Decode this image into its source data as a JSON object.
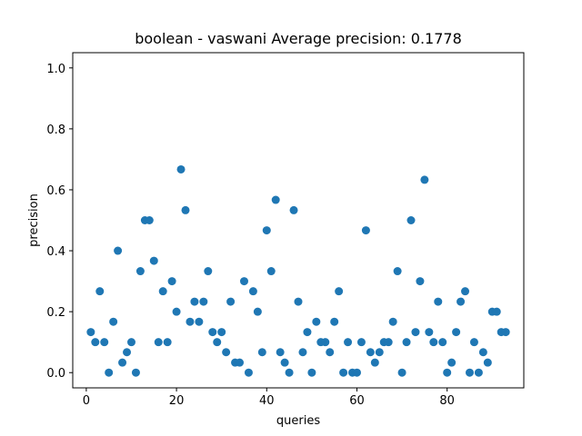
{
  "chart_data": {
    "type": "scatter",
    "title": "boolean - vaswani  Average precision: 0.1778",
    "xlabel": "queries",
    "ylabel": "precision",
    "xlim": [
      -3,
      97
    ],
    "ylim": [
      -0.05,
      1.05
    ],
    "xticks": [
      0,
      20,
      40,
      60,
      80
    ],
    "yticks": [
      0.0,
      0.2,
      0.4,
      0.6,
      0.8,
      1.0
    ],
    "ytick_labels": [
      "0.0",
      "0.2",
      "0.4",
      "0.6",
      "0.8",
      "1.0"
    ],
    "grid": false,
    "marker_color": "#1f77b4",
    "x": [
      1,
      2,
      3,
      4,
      5,
      6,
      7,
      8,
      9,
      10,
      11,
      12,
      13,
      14,
      15,
      16,
      17,
      18,
      19,
      20,
      21,
      22,
      23,
      24,
      25,
      26,
      27,
      28,
      29,
      30,
      31,
      32,
      33,
      34,
      35,
      36,
      37,
      38,
      39,
      40,
      41,
      42,
      43,
      44,
      45,
      46,
      47,
      48,
      49,
      50,
      51,
      52,
      53,
      54,
      55,
      56,
      57,
      58,
      59,
      60,
      61,
      62,
      63,
      64,
      65,
      66,
      67,
      68,
      69,
      70,
      71,
      72,
      73,
      74,
      75,
      76,
      77,
      78,
      79,
      80,
      81,
      82,
      83,
      84,
      85,
      86,
      87,
      88,
      89,
      90,
      91,
      92,
      93
    ],
    "y": [
      0.133,
      0.1,
      0.267,
      0.1,
      0.0,
      0.167,
      0.4,
      0.033,
      0.067,
      0.1,
      0.0,
      0.333,
      0.5,
      0.5,
      0.367,
      0.1,
      0.267,
      0.1,
      0.3,
      0.2,
      0.667,
      0.533,
      0.167,
      0.233,
      0.167,
      0.233,
      0.333,
      0.133,
      0.1,
      0.133,
      0.067,
      0.233,
      0.033,
      0.033,
      0.3,
      0.0,
      0.267,
      0.2,
      0.067,
      0.467,
      0.333,
      0.567,
      0.067,
      0.033,
      0.0,
      0.533,
      0.233,
      0.067,
      0.133,
      0.0,
      0.167,
      0.1,
      0.1,
      0.067,
      0.167,
      0.267,
      0.0,
      0.1,
      0.0,
      0.0,
      0.1,
      0.467,
      0.067,
      0.033,
      0.067,
      0.1,
      0.1,
      0.167,
      0.333,
      0.0,
      0.1,
      0.5,
      0.133,
      0.3,
      0.633,
      0.133,
      0.1,
      0.233,
      0.1,
      0.0,
      0.033,
      0.133,
      0.233,
      0.267,
      0.0,
      0.1,
      0.0,
      0.067,
      0.033,
      0.2,
      0.2,
      0.133,
      0.133
    ]
  }
}
